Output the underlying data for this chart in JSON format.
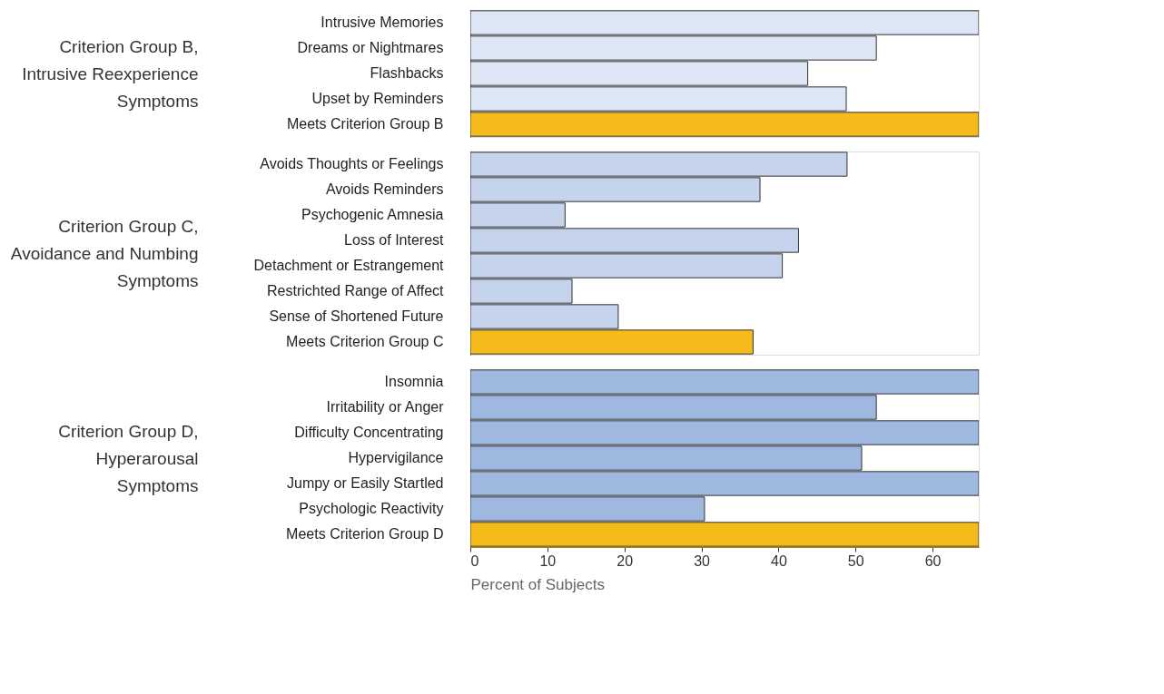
{
  "chart_data": [
    {
      "type": "bar",
      "orientation": "horizontal",
      "ylabel": "Criterion Group B,\nIntrusive Reexperience\nSymptoms",
      "categories": [
        "Intrusive Memories",
        "Dreams or Nightmares",
        "Flashbacks",
        "Upset by Reminders",
        "Meets Criterion Group B"
      ],
      "values": [
        66,
        52.7,
        43.8,
        48.8,
        66
      ],
      "colors": [
        "#dce6f4",
        "#dce6f4",
        "#dce6f4",
        "#dce6f4",
        "#f5bb1a"
      ],
      "xlim": [
        0,
        66
      ],
      "xticks": [
        0,
        10,
        20,
        30,
        40,
        50,
        60
      ],
      "tick_labels": "y",
      "grid": false
    },
    {
      "type": "bar",
      "orientation": "horizontal",
      "ylabel": "Criterion Group C,\nAvoidance and Numbing\nSymptoms",
      "categories": [
        "Avoids Thoughts or Feelings",
        "Avoids Reminders",
        "Psychogenic Amnesia",
        "Loss of Interest",
        "Detachment or Estrangement",
        "Restrichted Range of Affect",
        "Sense of Shortened Future",
        "Meets Criterion Group C"
      ],
      "values": [
        48.9,
        37.6,
        12.3,
        42.6,
        40.5,
        13.2,
        19.2,
        36.7
      ],
      "colors": [
        "#c5d3ec",
        "#c5d3ec",
        "#c5d3ec",
        "#c5d3ec",
        "#c5d3ec",
        "#c5d3ec",
        "#c5d3ec",
        "#f5bb1a"
      ],
      "xlim": [
        0,
        66
      ],
      "xticks": [
        0,
        10,
        20,
        30,
        40,
        50,
        60
      ],
      "tick_labels": "y",
      "grid": false
    },
    {
      "type": "bar",
      "orientation": "horizontal",
      "ylabel": "Criterion Group D,\nHyperarousal\nSymptoms",
      "xlabel": "Percent of Subjects",
      "categories": [
        "Insomnia",
        "Irritability or Anger",
        "Difficulty Concentrating",
        "Hypervigilance",
        "Jumpy or Easily Startled",
        "Psychologic Reactivity",
        "Meets Criterion Group D"
      ],
      "values": [
        66,
        52.7,
        66,
        50.8,
        66,
        30.4,
        66
      ],
      "colors": [
        "#9fb8e0",
        "#9fb8e0",
        "#9fb8e0",
        "#9fb8e0",
        "#9fb8e0",
        "#9fb8e0",
        "#f5bb1a"
      ],
      "xlim": [
        0,
        66
      ],
      "xticks": [
        0,
        10,
        20,
        30,
        40,
        50,
        60
      ],
      "grid": false
    }
  ]
}
